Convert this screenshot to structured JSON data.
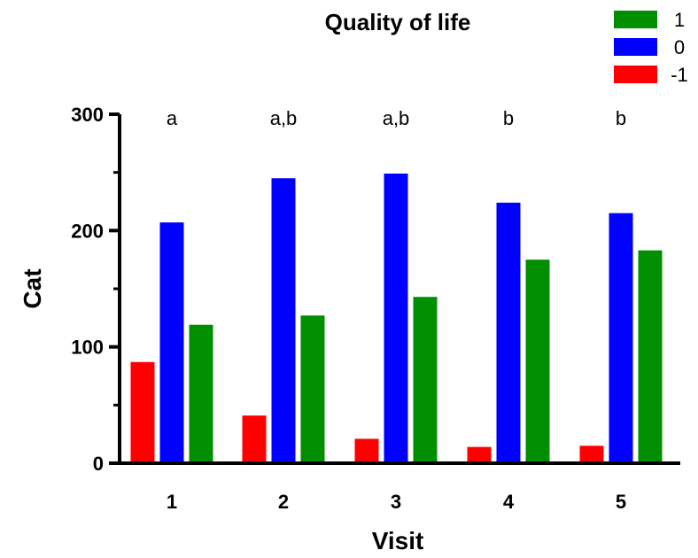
{
  "chart_data": {
    "type": "bar",
    "title": "Quality of life",
    "xlabel": "Visit",
    "ylabel": "Cat",
    "categories": [
      "1",
      "2",
      "3",
      "4",
      "5"
    ],
    "series": [
      {
        "name": "-1",
        "color": "#ff0000",
        "values": [
          87,
          41,
          21,
          14,
          15
        ]
      },
      {
        "name": "0",
        "color": "#0000ff",
        "values": [
          207,
          245,
          249,
          224,
          215
        ]
      },
      {
        "name": "1",
        "color": "#008f00",
        "values": [
          119,
          127,
          143,
          175,
          183
        ]
      }
    ],
    "legend_order": [
      "1",
      "0",
      "-1"
    ],
    "legend_position": "top-right",
    "annotations": [
      "a",
      "a,b",
      "a,b",
      "b",
      "b"
    ],
    "ylim": [
      0,
      300
    ],
    "yticks": [
      0,
      100,
      200,
      300
    ],
    "minor_yticks": [
      50,
      150,
      250
    ],
    "grid": false
  }
}
